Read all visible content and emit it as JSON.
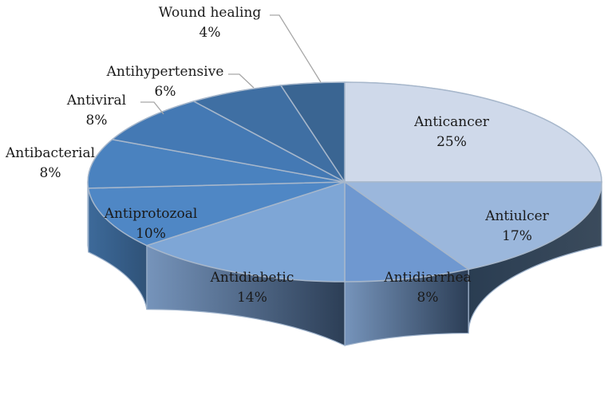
{
  "chart_data": {
    "type": "pie",
    "style": "3d-exploded-perspective",
    "start_angle_deg": 90,
    "direction": "clockwise",
    "title": "",
    "legend": "none",
    "slices": [
      {
        "label": "Anticancer",
        "value": 25,
        "value_label": "25%",
        "color": "#cfd9ea"
      },
      {
        "label": "Antiulcer",
        "value": 17,
        "value_label": "17%",
        "color": "#9bb7dc"
      },
      {
        "label": "Antidiarrhea",
        "value": 8,
        "value_label": "8%",
        "color": "#6f98d0"
      },
      {
        "label": "Antidiabetic",
        "value": 14,
        "value_label": "14%",
        "color": "#7ea6d6"
      },
      {
        "label": "Antiprotozoal",
        "value": 10,
        "value_label": "10%",
        "color": "#4f87c5"
      },
      {
        "label": "Antibacterial",
        "value": 8,
        "value_label": "8%",
        "color": "#4a82bf"
      },
      {
        "label": "Antiviral",
        "value": 8,
        "value_label": "8%",
        "color": "#4479b4"
      },
      {
        "label": "Antihypertensive",
        "value": 6,
        "value_label": "6%",
        "color": "#3f6fa3"
      },
      {
        "label": "Wound healing",
        "value": 4,
        "value_label": "4%",
        "color": "#3a6592"
      }
    ]
  }
}
